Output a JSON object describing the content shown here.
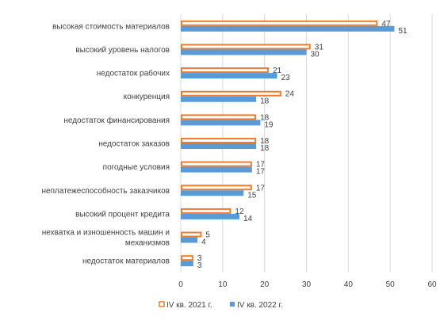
{
  "chart_data": {
    "type": "bar",
    "orientation": "horizontal",
    "categories": [
      "высокая стоимость материалов",
      "высокий уровень налогов",
      "недостаток рабочих",
      "конкуренция",
      "недостаток финансирования",
      "недостаток заказов",
      "погодные условия",
      "неплатежеспособность заказчиков",
      "высокий процент кредита",
      "нехватка и изношенность машин и механизмов",
      "недостаток материалов"
    ],
    "category_lines": [
      [
        "высокая стоимость материалов"
      ],
      [
        "высокий уровень налогов"
      ],
      [
        "недостаток рабочих"
      ],
      [
        "конкуренция"
      ],
      [
        "недостаток финансирования"
      ],
      [
        "недостаток заказов"
      ],
      [
        "погодные условия"
      ],
      [
        "неплатежеспособность заказчиков"
      ],
      [
        "высокий процент кредита"
      ],
      [
        "нехватка и изношенность машин и",
        "механизмов"
      ],
      [
        "недостаток материалов"
      ]
    ],
    "series": [
      {
        "name": "IV кв. 2021 г.",
        "values": [
          47,
          31,
          21,
          24,
          18,
          18,
          17,
          17,
          12,
          5,
          3
        ],
        "color": "#ED7D31",
        "style": "outline"
      },
      {
        "name": "IV кв. 2022 г.",
        "values": [
          51,
          30,
          23,
          18,
          19,
          18,
          17,
          15,
          14,
          4,
          3
        ],
        "color": "#5B9BD5",
        "style": "filled"
      }
    ],
    "xlim": [
      0,
      60
    ],
    "xticks": [
      0,
      10,
      20,
      30,
      40,
      50,
      60
    ],
    "grid": "vertical",
    "legend": "bottom",
    "data_labels": true
  }
}
